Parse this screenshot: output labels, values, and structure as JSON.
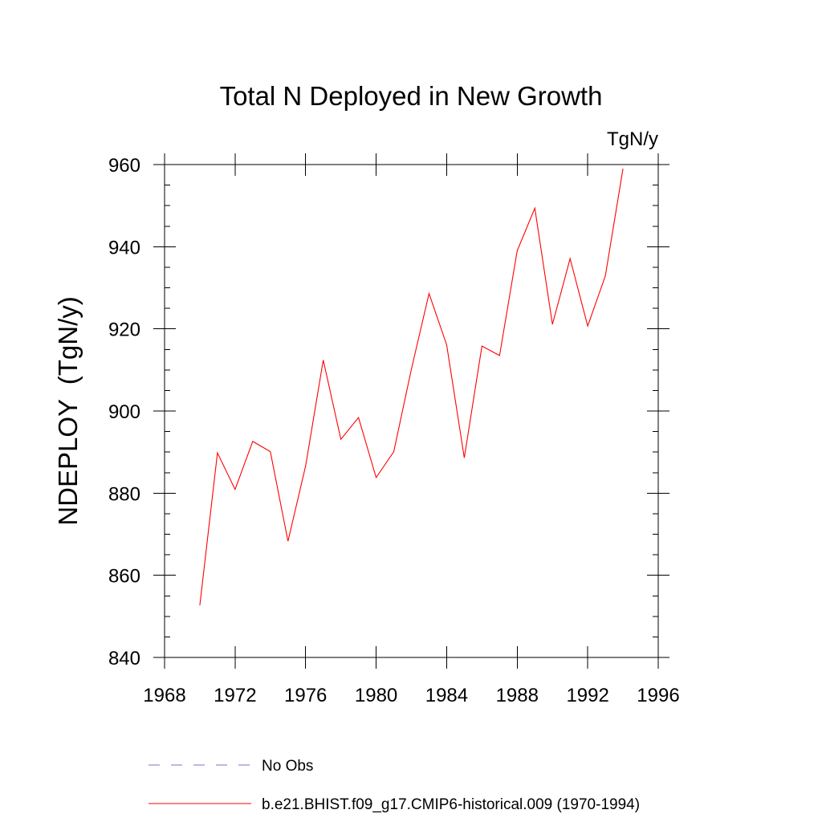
{
  "chart_data": {
    "type": "line",
    "title": "Total N Deployed in New Growth",
    "units_label": "TgN/y",
    "ylabel": "NDEPLOY  (TgN/y)",
    "xlabel": "",
    "xlim": [
      1968,
      1996
    ],
    "ylim": [
      840,
      960
    ],
    "x_ticks": [
      1968,
      1972,
      1976,
      1980,
      1984,
      1988,
      1992,
      1996
    ],
    "x_tick_labels": [
      "1968",
      "1972",
      "1976",
      "1980",
      "1984",
      "1988",
      "1992",
      "1996"
    ],
    "y_ticks": [
      840,
      860,
      880,
      900,
      920,
      940,
      960
    ],
    "y_tick_labels": [
      "840",
      "860",
      "880",
      "900",
      "920",
      "940",
      "960"
    ],
    "grid": false,
    "legend_position": "bottom",
    "x": [
      1970,
      1971,
      1972,
      1973,
      1974,
      1975,
      1976,
      1977,
      1978,
      1979,
      1980,
      1981,
      1982,
      1983,
      1984,
      1985,
      1986,
      1987,
      1988,
      1989,
      1990,
      1991,
      1992,
      1993,
      1994
    ],
    "series": [
      {
        "name": "b.e21.BHIST.f09_g17.CMIP6-historical.009 (1970-1994)",
        "color": "#ff0000",
        "style": "solid",
        "values": [
          852.7,
          889.8,
          880.9,
          892.6,
          890.1,
          868.3,
          886.6,
          912.4,
          893.1,
          898.4,
          883.8,
          890.1,
          910.2,
          928.6,
          916.1,
          888.6,
          915.8,
          913.5,
          939.0,
          949.4,
          921.1,
          937.1,
          920.7,
          932.9,
          959.0
        ]
      }
    ],
    "legend": [
      {
        "label": "No Obs",
        "color": "#7b6fd0",
        "style": "dashed"
      },
      {
        "label": "b.e21.BHIST.f09_g17.CMIP6-historical.009 (1970-1994)",
        "color": "#ff0000",
        "style": "solid"
      }
    ]
  }
}
